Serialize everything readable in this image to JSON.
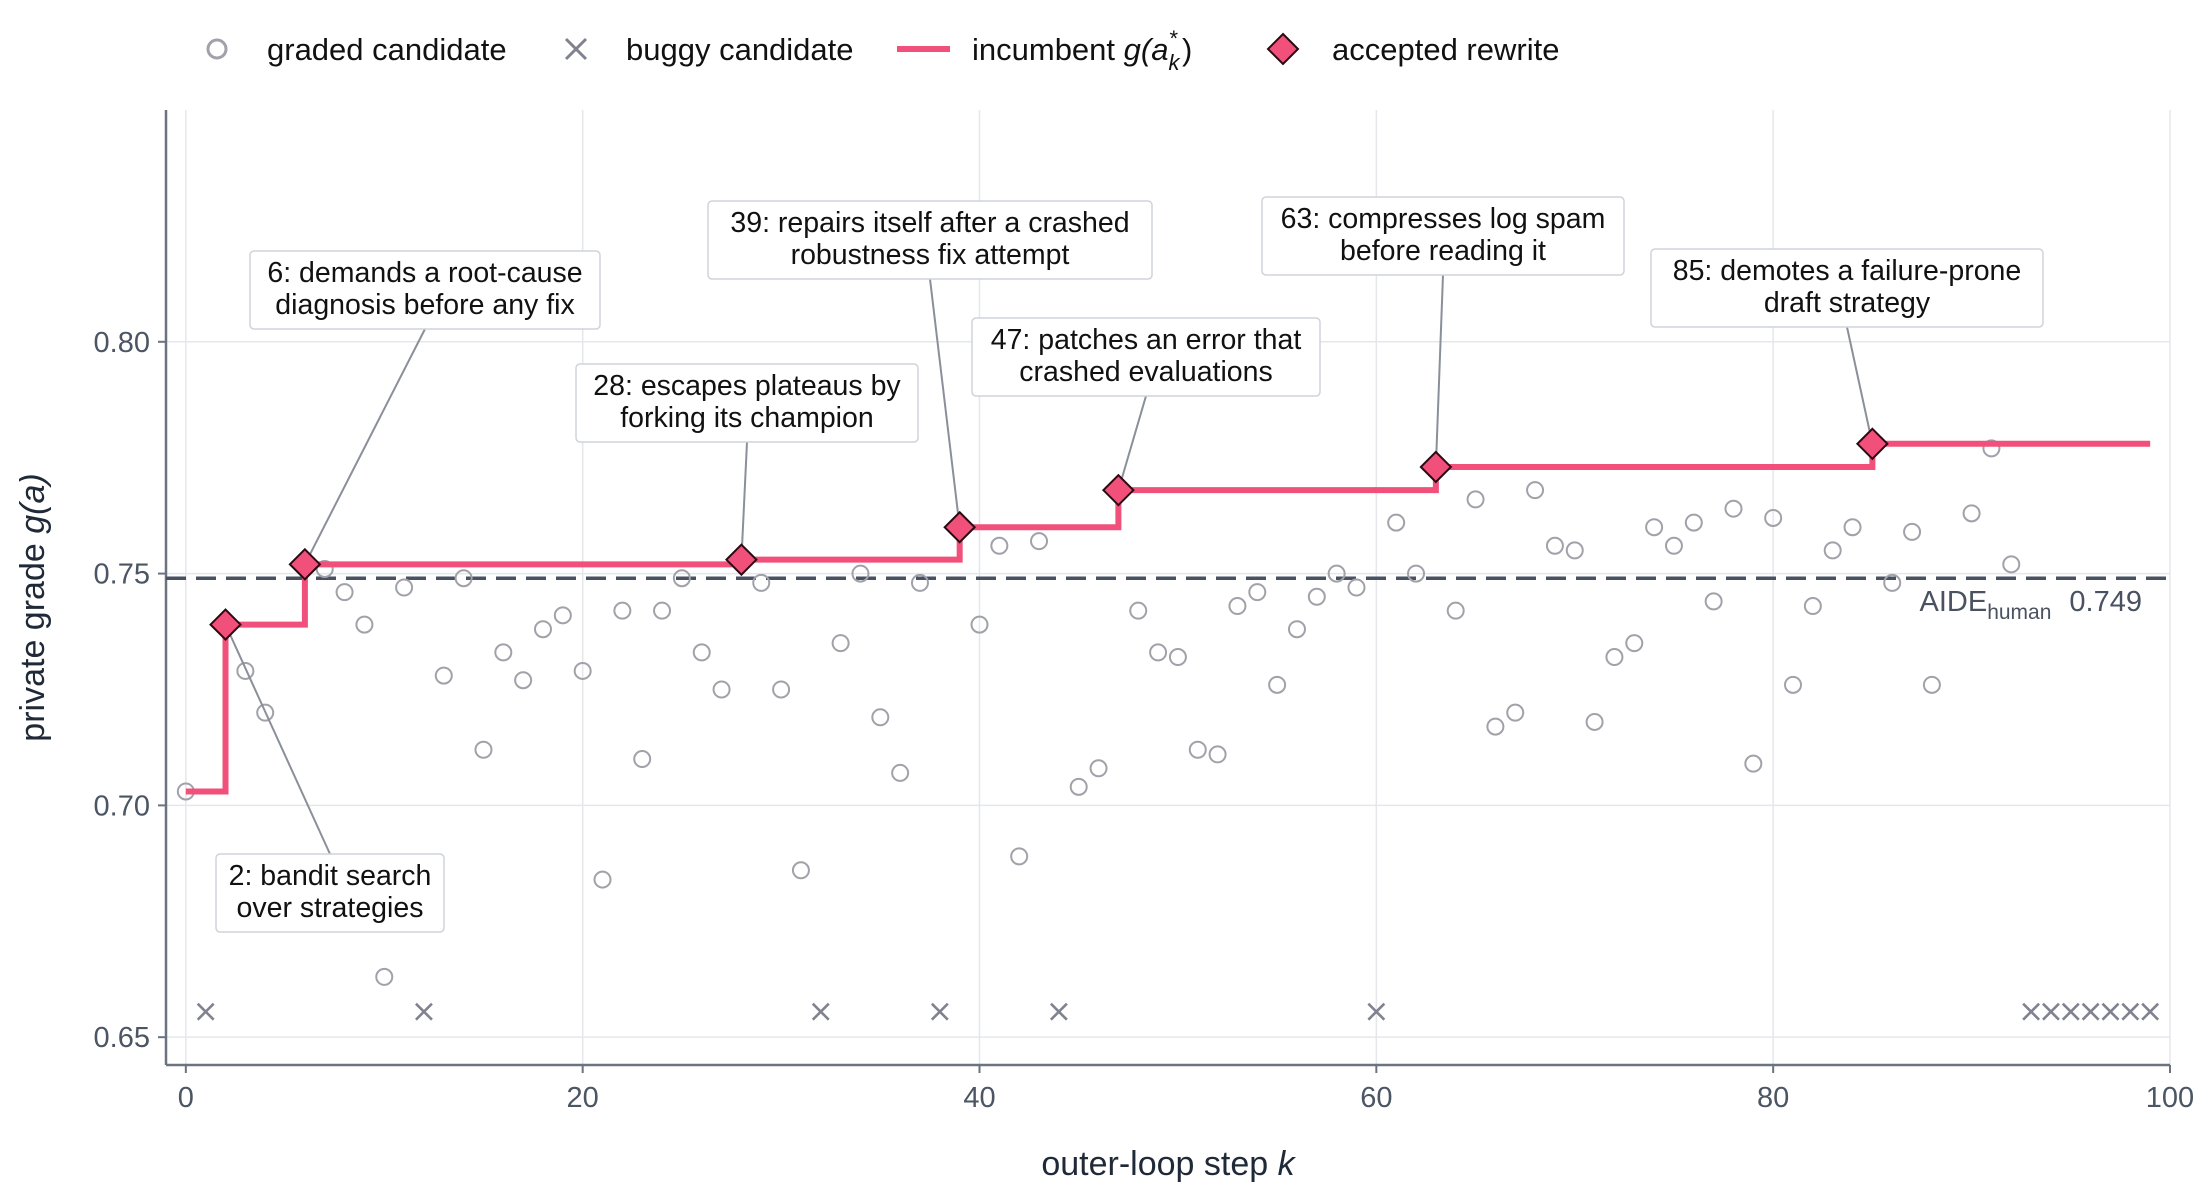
{
  "chart_data": {
    "type": "scatter",
    "legend": {
      "placement": "top",
      "graded": "graded candidate",
      "buggy": "buggy candidate",
      "incumbent_prefix": "incumbent ",
      "accepted": "accepted rewrite"
    },
    "xlabel_text": "outer-loop step ",
    "xlabel_var": "k",
    "ylabel_text": "private grade ",
    "ylabel_var": "g(a)",
    "xlim": [
      -1,
      100
    ],
    "ylim": [
      0.644,
      0.85
    ],
    "x_ticks": [
      0,
      20,
      40,
      60,
      80,
      100
    ],
    "y_ticks": [
      0.65,
      0.7,
      0.75,
      0.8
    ],
    "y_tick_labels": [
      "0.65",
      "0.70",
      "0.75",
      "0.80"
    ],
    "grid": true,
    "baseline": {
      "value": 0.749,
      "label_main": "AIDE",
      "label_sub": "human",
      "label_value": "0.749"
    },
    "graded_candidates": [
      [
        0,
        0.703
      ],
      [
        3,
        0.729
      ],
      [
        4,
        0.72
      ],
      [
        7,
        0.751
      ],
      [
        8,
        0.746
      ],
      [
        9,
        0.739
      ],
      [
        10,
        0.663
      ],
      [
        11,
        0.747
      ],
      [
        13,
        0.728
      ],
      [
        14,
        0.749
      ],
      [
        15,
        0.712
      ],
      [
        16,
        0.733
      ],
      [
        17,
        0.727
      ],
      [
        18,
        0.738
      ],
      [
        19,
        0.741
      ],
      [
        20,
        0.729
      ],
      [
        21,
        0.684
      ],
      [
        22,
        0.742
      ],
      [
        23,
        0.71
      ],
      [
        24,
        0.742
      ],
      [
        25,
        0.749
      ],
      [
        26,
        0.733
      ],
      [
        27,
        0.725
      ],
      [
        29,
        0.748
      ],
      [
        30,
        0.725
      ],
      [
        31,
        0.686
      ],
      [
        33,
        0.735
      ],
      [
        34,
        0.75
      ],
      [
        35,
        0.719
      ],
      [
        36,
        0.707
      ],
      [
        37,
        0.748
      ],
      [
        40,
        0.739
      ],
      [
        41,
        0.756
      ],
      [
        42,
        0.689
      ],
      [
        43,
        0.757
      ],
      [
        45,
        0.704
      ],
      [
        46,
        0.708
      ],
      [
        48,
        0.742
      ],
      [
        49,
        0.733
      ],
      [
        50,
        0.732
      ],
      [
        51,
        0.712
      ],
      [
        52,
        0.711
      ],
      [
        53,
        0.743
      ],
      [
        54,
        0.746
      ],
      [
        55,
        0.726
      ],
      [
        56,
        0.738
      ],
      [
        57,
        0.745
      ],
      [
        58,
        0.75
      ],
      [
        59,
        0.747
      ],
      [
        61,
        0.761
      ],
      [
        62,
        0.75
      ],
      [
        64,
        0.742
      ],
      [
        65,
        0.766
      ],
      [
        66,
        0.717
      ],
      [
        67,
        0.72
      ],
      [
        68,
        0.768
      ],
      [
        69,
        0.756
      ],
      [
        70,
        0.755
      ],
      [
        71,
        0.718
      ],
      [
        72,
        0.732
      ],
      [
        73,
        0.735
      ],
      [
        74,
        0.76
      ],
      [
        75,
        0.756
      ],
      [
        76,
        0.761
      ],
      [
        77,
        0.744
      ],
      [
        78,
        0.764
      ],
      [
        79,
        0.709
      ],
      [
        80,
        0.762
      ],
      [
        81,
        0.726
      ],
      [
        82,
        0.743
      ],
      [
        83,
        0.755
      ],
      [
        84,
        0.76
      ],
      [
        86,
        0.748
      ],
      [
        87,
        0.759
      ],
      [
        88,
        0.726
      ],
      [
        90,
        0.763
      ],
      [
        91,
        0.777
      ],
      [
        92,
        0.752
      ]
    ],
    "buggy_candidates_x": [
      1,
      12,
      32,
      38,
      44,
      60,
      93,
      94,
      95,
      96,
      97,
      98,
      99
    ],
    "buggy_y": 0.6555,
    "incumbent_steps": [
      [
        0,
        0.703
      ],
      [
        2,
        0.739
      ],
      [
        6,
        0.752
      ],
      [
        28,
        0.753
      ],
      [
        39,
        0.76
      ],
      [
        47,
        0.768
      ],
      [
        63,
        0.773
      ],
      [
        85,
        0.778
      ],
      [
        99,
        0.778
      ]
    ],
    "accepted_rewrites": [
      [
        2,
        0.739
      ],
      [
        6,
        0.752
      ],
      [
        28,
        0.753
      ],
      [
        39,
        0.76
      ],
      [
        47,
        0.768
      ],
      [
        63,
        0.773
      ],
      [
        85,
        0.778
      ]
    ],
    "annotations": [
      {
        "step": 2,
        "lines": [
          "2: bandit search",
          "over strategies"
        ]
      },
      {
        "step": 6,
        "lines": [
          "6: demands a root-cause",
          "diagnosis before any fix"
        ]
      },
      {
        "step": 28,
        "lines": [
          "28: escapes plateaus by",
          "forking its champion"
        ]
      },
      {
        "step": 39,
        "lines": [
          "39: repairs itself after a crashed",
          "robustness fix attempt"
        ]
      },
      {
        "step": 47,
        "lines": [
          "47: patches an error that",
          "crashed evaluations"
        ]
      },
      {
        "step": 63,
        "lines": [
          "63: compresses log spam",
          "before reading it"
        ]
      },
      {
        "step": 85,
        "lines": [
          "85: demotes a failure-prone",
          "draft strategy"
        ]
      }
    ],
    "colors": {
      "graded": "#a1a1aa",
      "buggy": "#80838f",
      "incumbent": "#f0507a",
      "accepted_fill": "#f0507a",
      "accepted_edge": "#2b0a12",
      "baseline": "#4a5261",
      "grid": "#e5e7eb",
      "axis": "#6b7280",
      "leader": "#8a8f99"
    }
  }
}
